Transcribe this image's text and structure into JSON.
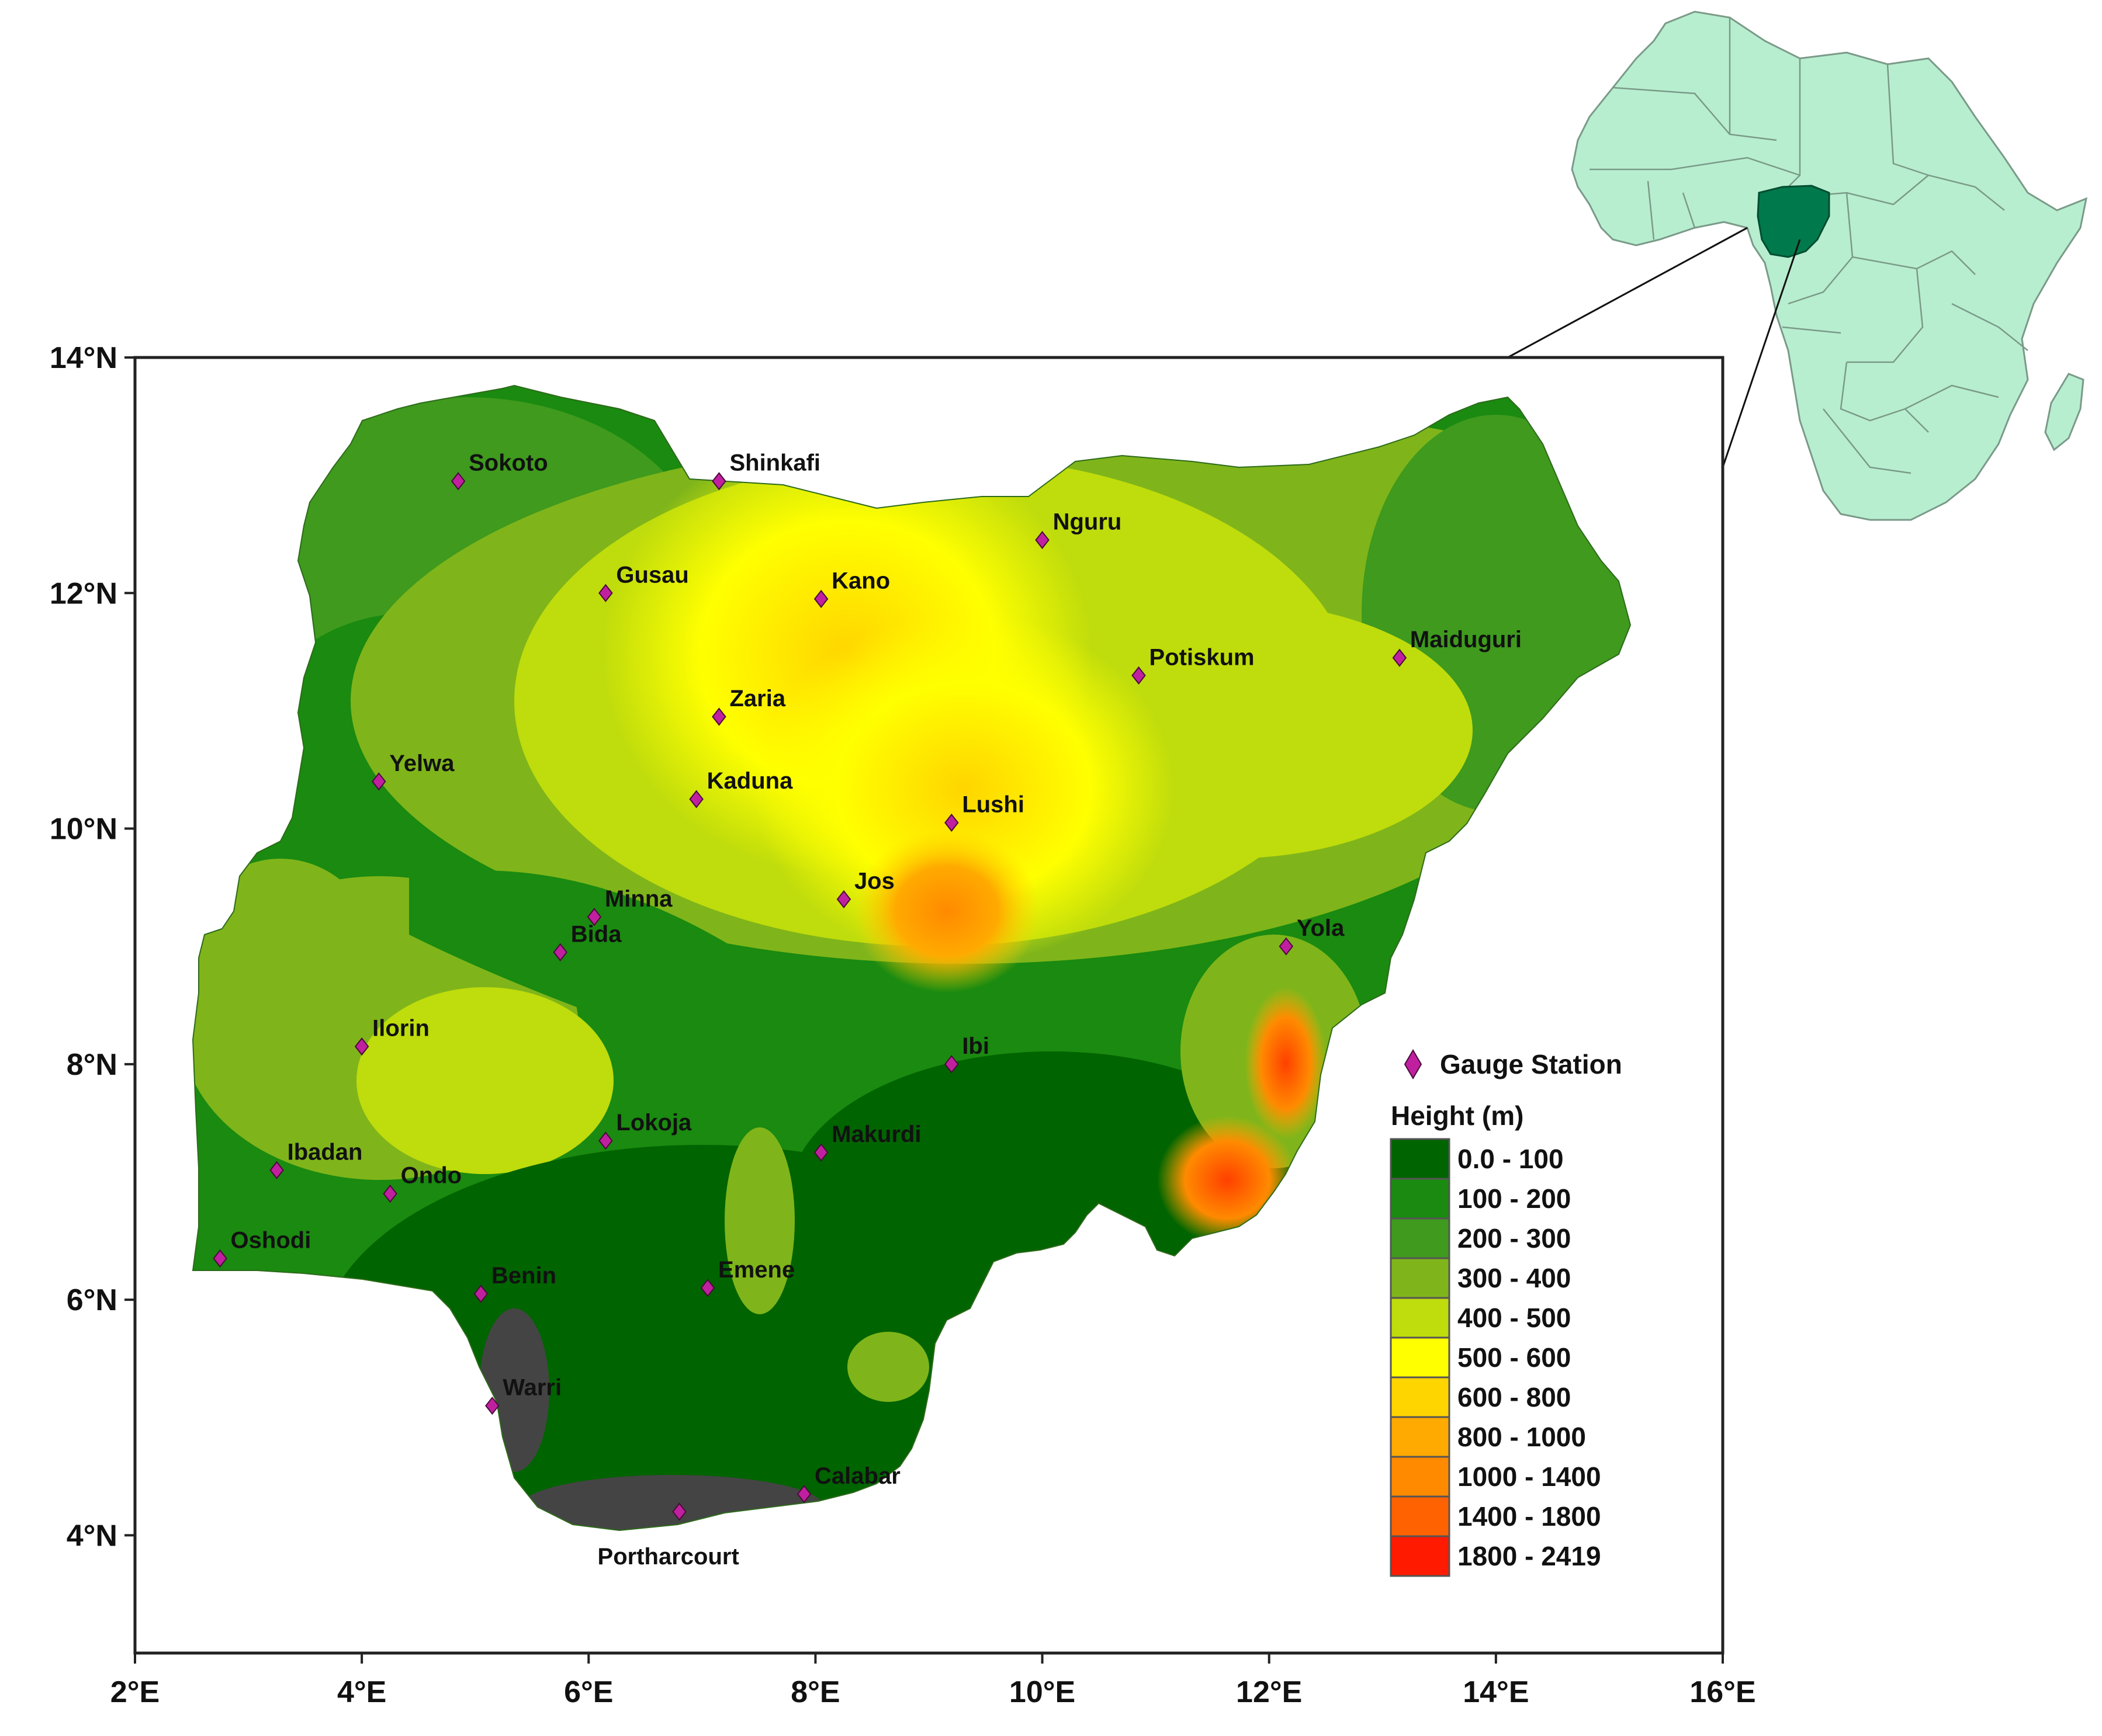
{
  "map": {
    "x_ticks": [
      "2°E",
      "4°E",
      "6°E",
      "8°E",
      "10°E",
      "12°E",
      "14°E",
      "16°E"
    ],
    "y_ticks": [
      "14°N",
      "12°N",
      "10°N",
      "8°N",
      "6°N",
      "4°N"
    ],
    "x_tick_values": [
      2,
      4,
      6,
      8,
      10,
      12,
      14,
      16
    ],
    "y_tick_values": [
      14,
      12,
      10,
      8,
      6,
      4
    ],
    "lon_range": [
      2,
      16
    ],
    "lat_range": [
      3,
      14
    ],
    "stations": [
      {
        "name": "Sokoto",
        "lon": 4.85,
        "lat": 12.95
      },
      {
        "name": "Shinkafi",
        "lon": 7.15,
        "lat": 12.95
      },
      {
        "name": "Nguru",
        "lon": 10.0,
        "lat": 12.45
      },
      {
        "name": "Gusau",
        "lon": 6.15,
        "lat": 12.0
      },
      {
        "name": "Kano",
        "lon": 8.05,
        "lat": 11.95
      },
      {
        "name": "Potiskum",
        "lon": 10.85,
        "lat": 11.3
      },
      {
        "name": "Maiduguri",
        "lon": 13.15,
        "lat": 11.45
      },
      {
        "name": "Zaria",
        "lon": 7.15,
        "lat": 10.95
      },
      {
        "name": "Yelwa",
        "lon": 4.15,
        "lat": 10.4
      },
      {
        "name": "Kaduna",
        "lon": 6.95,
        "lat": 10.25
      },
      {
        "name": "Lushi",
        "lon": 9.2,
        "lat": 10.05
      },
      {
        "name": "Jos",
        "lon": 8.25,
        "lat": 9.4
      },
      {
        "name": "Minna",
        "lon": 6.05,
        "lat": 9.25
      },
      {
        "name": "Bida",
        "lon": 5.75,
        "lat": 8.95
      },
      {
        "name": "Yola",
        "lon": 12.15,
        "lat": 9.0
      },
      {
        "name": "Ilorin",
        "lon": 4.0,
        "lat": 8.15
      },
      {
        "name": "Ibi",
        "lon": 9.2,
        "lat": 8.0
      },
      {
        "name": "Lokoja",
        "lon": 6.15,
        "lat": 7.35
      },
      {
        "name": "Makurdi",
        "lon": 8.05,
        "lat": 7.25
      },
      {
        "name": "Ibadan",
        "lon": 3.25,
        "lat": 7.1
      },
      {
        "name": "Ondo",
        "lon": 4.25,
        "lat": 6.9
      },
      {
        "name": "Oshodi",
        "lon": 2.75,
        "lat": 6.35
      },
      {
        "name": "Benin",
        "lon": 5.05,
        "lat": 6.05
      },
      {
        "name": "Emene",
        "lon": 7.05,
        "lat": 6.1
      },
      {
        "name": "Warri",
        "lon": 5.15,
        "lat": 5.1
      },
      {
        "name": "Calabar",
        "lon": 7.9,
        "lat": 4.35
      },
      {
        "name": "Portharcourt",
        "lon": 6.8,
        "lat": 4.2
      }
    ]
  },
  "legend": {
    "station_label": "Gauge Station",
    "height_title": "Height (m)",
    "classes": [
      {
        "label": "0.0 - 100",
        "color": "#006400"
      },
      {
        "label": "100 - 200",
        "color": "#1a8a10"
      },
      {
        "label": "200 - 300",
        "color": "#3f9a1e"
      },
      {
        "label": "300 - 400",
        "color": "#7fb51a"
      },
      {
        "label": "400 - 500",
        "color": "#bfdc0c"
      },
      {
        "label": "500 - 600",
        "color": "#ffff00"
      },
      {
        "label": "600 - 800",
        "color": "#ffd500"
      },
      {
        "label": "800 - 1000",
        "color": "#ffaa00"
      },
      {
        "label": "1000 - 1400",
        "color": "#ff8a00"
      },
      {
        "label": "1400 - 1800",
        "color": "#ff6200"
      },
      {
        "label": "1800 - 2419",
        "color": "#ff1a00"
      }
    ]
  },
  "colors": {
    "station_marker": "#c020a0",
    "africa_fill": "#b8eed0",
    "nigeria_highlight": "#007a4c",
    "delta_gray": "#444444"
  }
}
